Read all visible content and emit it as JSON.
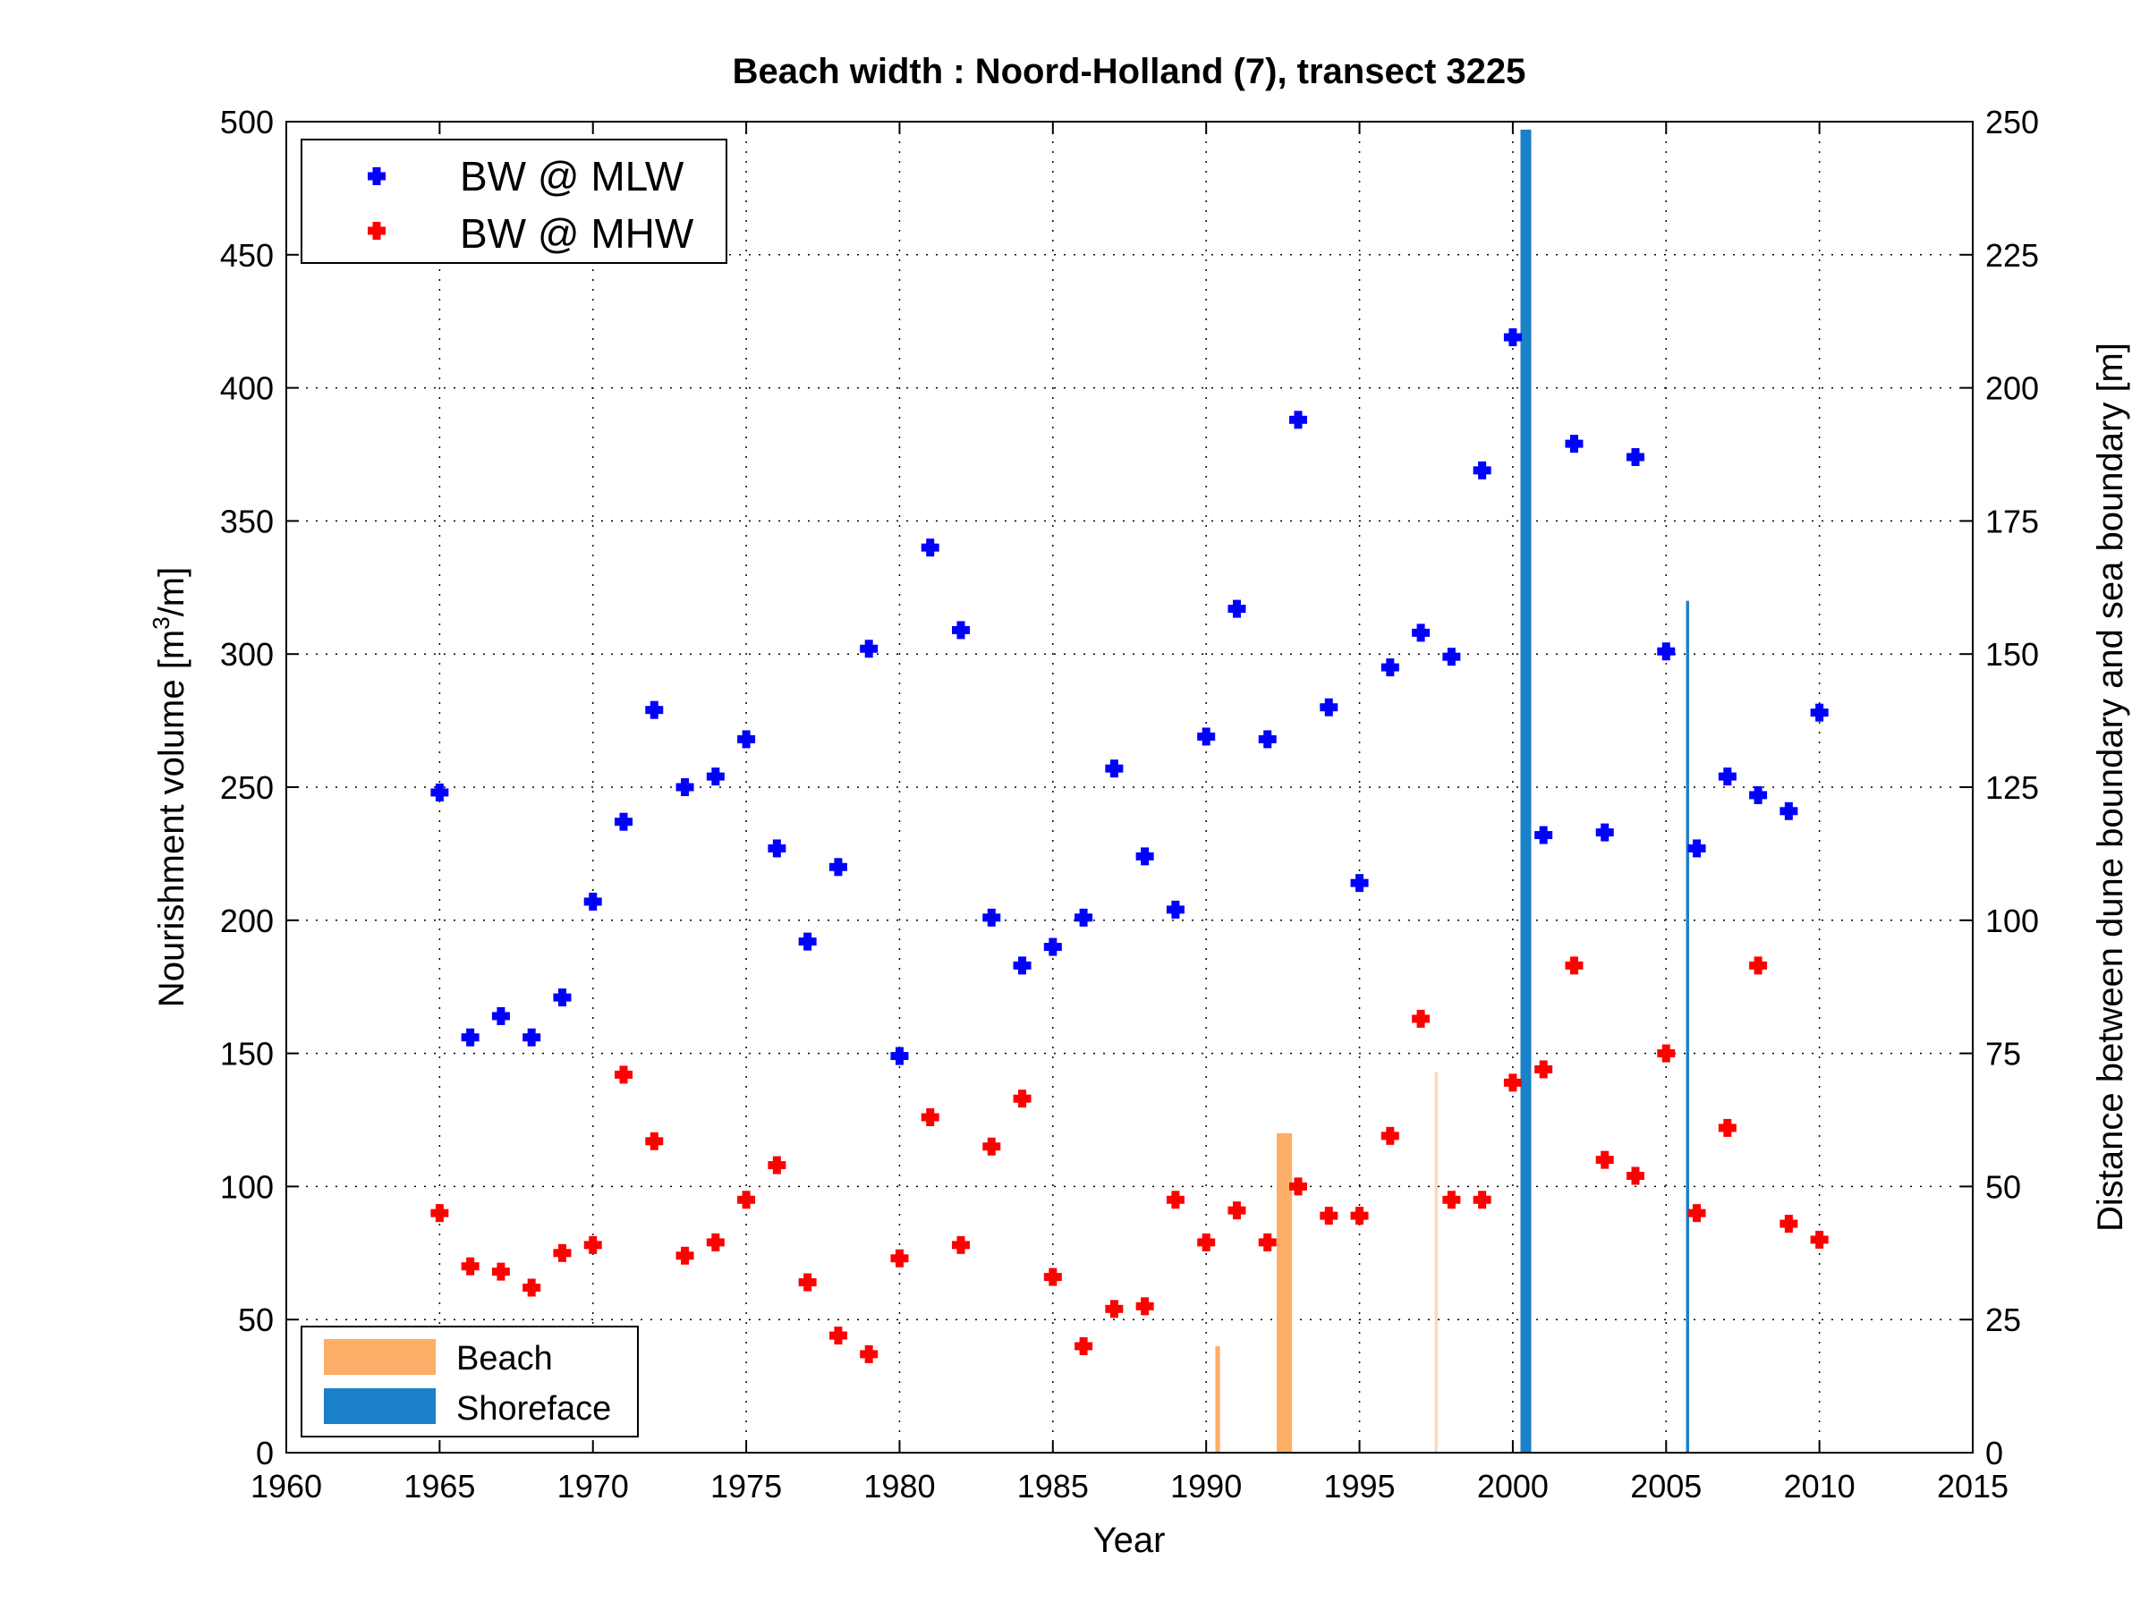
{
  "chart_data": {
    "type": "scatter",
    "title": "Beach width : Noord-Holland (7), transect 3225",
    "xlabel": "Year",
    "ylabel_left": "Nourishment volume [m3/m]",
    "ylabel_left_main": "Nourishment volume [m",
    "ylabel_left_sup": "3",
    "ylabel_left_tail": "/m]",
    "ylabel_right": "Distance between dune boundary and sea boundary [m]",
    "xlim": [
      1960,
      2015
    ],
    "ylim_left": [
      0,
      500
    ],
    "ylim_right": [
      0,
      250
    ],
    "xticks": [
      "1960",
      "1965",
      "1970",
      "1975",
      "1980",
      "1985",
      "1990",
      "1995",
      "2000",
      "2005",
      "2010",
      "2015"
    ],
    "yticks_left": [
      "0",
      "50",
      "100",
      "150",
      "200",
      "250",
      "300",
      "350",
      "400",
      "450",
      "500"
    ],
    "yticks_right": [
      "0",
      "25",
      "50",
      "75",
      "100",
      "125",
      "150",
      "175",
      "200",
      "225",
      "250"
    ],
    "grid": true,
    "legend_top": {
      "placement": "top-left",
      "entries": [
        {
          "label": "BW @ MLW",
          "color": "#0000ff"
        },
        {
          "label": "BW @ MHW",
          "color": "#ff0000"
        }
      ]
    },
    "legend_bottom": {
      "placement": "bottom-left",
      "entries": [
        {
          "label": "Beach",
          "color": "#fdae66"
        },
        {
          "label": "Shoreface",
          "color": "#1a80c8"
        }
      ]
    },
    "series": [
      {
        "name": "BW @ MLW",
        "axis": "right",
        "color": "#0000ff",
        "x": [
          1965,
          1966,
          1967,
          1968,
          1969,
          1970,
          1971,
          1972,
          1973,
          1974,
          1975,
          1976,
          1977,
          1978,
          1979,
          1980,
          1981,
          1982,
          1983,
          1984,
          1985,
          1986,
          1987,
          1988,
          1989,
          1990,
          1991,
          1992,
          1993,
          1994,
          1995,
          1996,
          1997,
          1998,
          1999,
          2000,
          2001,
          2002,
          2003,
          2004,
          2005,
          2006,
          2007,
          2008,
          2009,
          2010
        ],
        "y": [
          124,
          78,
          82,
          78,
          85.5,
          103.5,
          118.5,
          139.5,
          125,
          127,
          134,
          113.5,
          96,
          110,
          151,
          74.5,
          170,
          154.5,
          100.5,
          91.5,
          95,
          100.5,
          128.5,
          112,
          102,
          134.5,
          158.5,
          134,
          194,
          140,
          107,
          147.5,
          154,
          149.5,
          184.5,
          209.5,
          116,
          189.5,
          116.5,
          187,
          150.5,
          113.5,
          127,
          123.5,
          120.5,
          139
        ]
      },
      {
        "name": "BW @ MHW",
        "axis": "right",
        "color": "#ff0000",
        "x": [
          1965,
          1966,
          1967,
          1968,
          1969,
          1970,
          1971,
          1972,
          1973,
          1974,
          1975,
          1976,
          1977,
          1978,
          1979,
          1980,
          1981,
          1982,
          1983,
          1984,
          1985,
          1986,
          1987,
          1988,
          1989,
          1990,
          1991,
          1992,
          1993,
          1994,
          1995,
          1996,
          1997,
          1998,
          1999,
          2000,
          2001,
          2002,
          2003,
          2004,
          2005,
          2006,
          2007,
          2008,
          2009,
          2010
        ],
        "y": [
          45,
          35,
          34,
          31,
          37.5,
          39,
          71,
          58.5,
          37,
          39.5,
          47.5,
          54,
          32,
          22,
          18.5,
          36.5,
          63,
          39,
          57.5,
          66.5,
          33,
          20,
          27,
          27.5,
          47.5,
          39.5,
          45.5,
          39.5,
          50,
          44.5,
          44.5,
          59.5,
          81.5,
          47.5,
          47.5,
          69.5,
          72,
          91.5,
          55,
          52,
          75,
          45,
          61,
          91.5,
          43,
          40
        ]
      }
    ],
    "nourishments": [
      {
        "type": "Beach",
        "axis": "left",
        "x_start": 1990.3,
        "x_end": 1990.45,
        "value": 40,
        "color": "#fdae66"
      },
      {
        "type": "Beach",
        "axis": "left",
        "x_start": 1992.3,
        "x_end": 1992.8,
        "value": 120,
        "color": "#fdae66"
      },
      {
        "type": "Beach",
        "axis": "left",
        "x_start": 1997.45,
        "x_end": 1997.55,
        "value": 143,
        "color": "#fdd8b8"
      },
      {
        "type": "Shoreface",
        "axis": "left",
        "x_start": 2000.25,
        "x_end": 2000.6,
        "value": 497,
        "color": "#1a80c8"
      },
      {
        "type": "Shoreface",
        "axis": "left",
        "x_start": 2005.65,
        "x_end": 2005.75,
        "value": 320,
        "color": "#1a80c8"
      }
    ]
  }
}
